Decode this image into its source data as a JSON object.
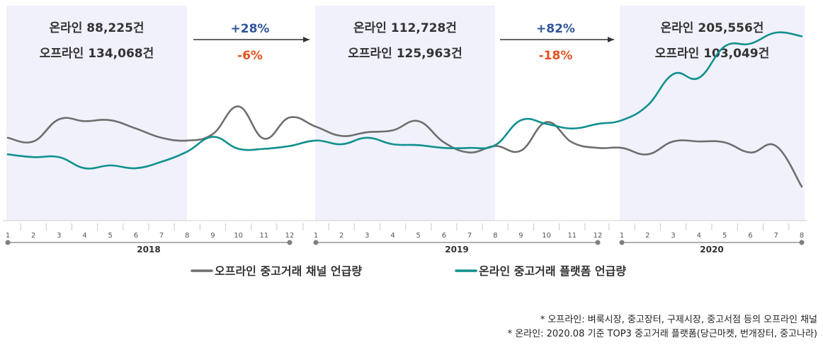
{
  "chart_data": {
    "type": "line",
    "periods": [
      {
        "year": "2018",
        "months": [
          "1",
          "2",
          "3",
          "4",
          "5",
          "6",
          "7",
          "8",
          "9",
          "10",
          "11",
          "12"
        ]
      },
      {
        "year": "2019",
        "months": [
          "1",
          "2",
          "3",
          "4",
          "5",
          "6",
          "7",
          "8",
          "9",
          "10",
          "11",
          "12"
        ]
      },
      {
        "year": "2020",
        "months": [
          "1",
          "2",
          "3",
          "4",
          "5",
          "6",
          "7",
          "8"
        ]
      }
    ],
    "series": [
      {
        "name": "오프라인 중고거래 채널 언급량",
        "color": "#6e6e6e",
        "values": [
          53,
          49,
          73,
          71,
          72,
          63,
          53,
          50,
          57,
          87,
          52,
          75,
          65,
          55,
          59,
          61,
          71,
          48,
          37,
          44,
          39,
          70,
          48,
          42,
          42,
          35,
          49,
          49,
          48,
          37,
          44,
          0
        ]
      },
      {
        "name": "온라인 중고거래 플랫폼 언급량",
        "color": "#10908e",
        "values": [
          35,
          32,
          32,
          20,
          23,
          20,
          27,
          38,
          54,
          41,
          41,
          44,
          50,
          46,
          53,
          46,
          45,
          42,
          42,
          45,
          72,
          68,
          63,
          68,
          72,
          88,
          122,
          118,
          152,
          155,
          167,
          163
        ]
      }
    ],
    "bands": [
      {
        "lines": [
          "온라인 88,225건",
          "오프라인 134,068건"
        ]
      },
      {
        "lines": [
          "온라인 112,728건",
          "오프라인 125,963건"
        ]
      },
      {
        "lines": [
          "온라인 205,556건",
          "오프라인 103,049건"
        ]
      }
    ],
    "changes": [
      {
        "online": "+28%",
        "offline": "-6%"
      },
      {
        "online": "+82%",
        "offline": "-18%"
      }
    ],
    "colors": {
      "band": "#f0f1fb",
      "up": "#2f5597",
      "down": "#e0531f",
      "axis": "#7f7f7f"
    }
  },
  "footnotes": [
    "* 오프라인: 벼룩시장, 중고장터, 구제시장, 중고서점 등의 오프라인 채널",
    "* 온라인: 2020.08 기준 TOP3 중고거래 플랫폼(당근마켓, 번개장터, 중고나라)"
  ]
}
